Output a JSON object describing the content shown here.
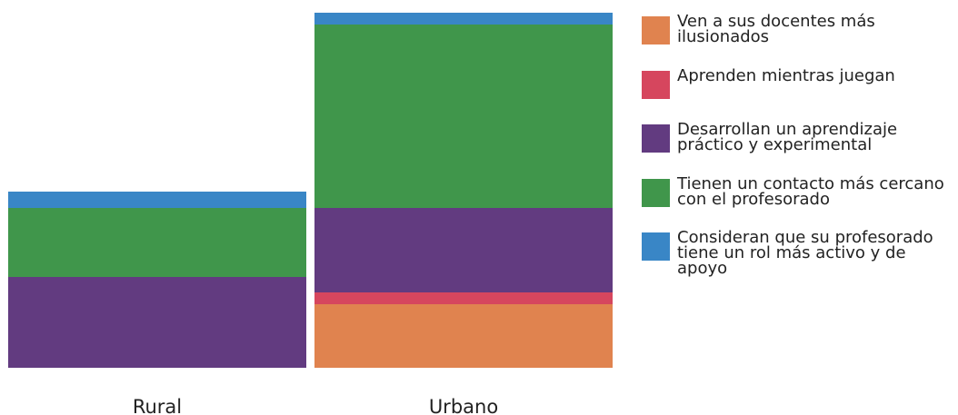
{
  "chart_data": {
    "type": "bar",
    "stacked": true,
    "categories": [
      "Rural",
      "Urbano"
    ],
    "series": [
      {
        "name": "Ven a sus docentes más ilusionados",
        "color": "#e0834f",
        "values": [
          0,
          70
        ]
      },
      {
        "name": "Aprenden mientras juegan",
        "color": "#d6465e",
        "values": [
          0,
          13
        ]
      },
      {
        "name": "Desarrollan un aprendizaje práctico y experimental",
        "color": "#623b80",
        "values": [
          100,
          93
        ]
      },
      {
        "name": "Tienen un contacto más cercano con el profesorado",
        "color": "#40964b",
        "values": [
          76,
          202
        ]
      },
      {
        "name": "Consideran que su profesorado tiene un rol más activo y de apoyo",
        "color": "#3986c6",
        "values": [
          18,
          13
        ]
      }
    ],
    "ylim": [
      0,
      391
    ],
    "grid": false,
    "legend_position": "right"
  }
}
